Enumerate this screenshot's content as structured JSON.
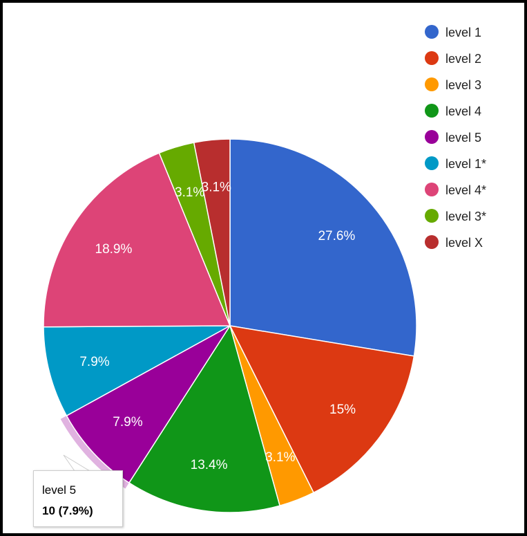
{
  "chart_data": {
    "type": "pie",
    "legend_position": "right",
    "slices": [
      {
        "label": "level 1",
        "value": 27.6,
        "display": "27.6%",
        "color": "#3366cc"
      },
      {
        "label": "level 2",
        "value": 15.0,
        "display": "15%",
        "color": "#dc3912"
      },
      {
        "label": "level 3",
        "value": 3.1,
        "display": "3.1%",
        "color": "#ff9900"
      },
      {
        "label": "level 4",
        "value": 13.4,
        "display": "13.4%",
        "color": "#109618"
      },
      {
        "label": "level 5",
        "value": 7.9,
        "display": "7.9%",
        "color": "#990099"
      },
      {
        "label": "level 1*",
        "value": 7.9,
        "display": "7.9%",
        "color": "#0099c6"
      },
      {
        "label": "level 4*",
        "value": 18.9,
        "display": "18.9%",
        "color": "#dd4477"
      },
      {
        "label": "level 3*",
        "value": 3.1,
        "display": "3.1%",
        "color": "#66aa00"
      },
      {
        "label": "level X",
        "value": 3.1,
        "display": "3.1%",
        "color": "#b82e2e"
      }
    ]
  },
  "tooltip": {
    "name": "level 5",
    "value": "10 (7.9%)"
  }
}
